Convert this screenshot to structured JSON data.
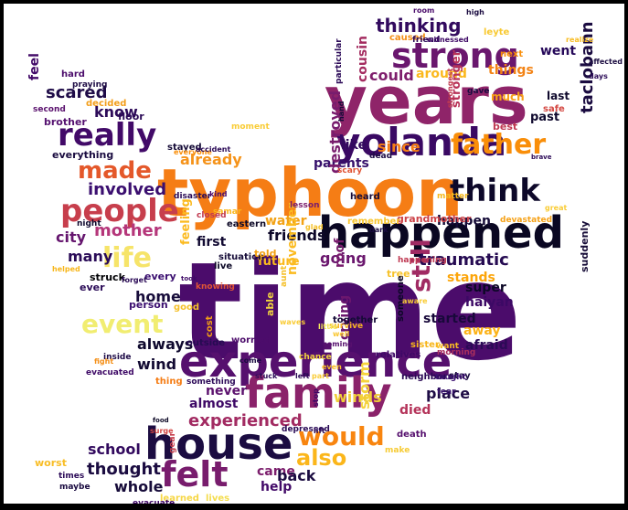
{
  "word_cloud": {
    "words": [
      {
        "text": "time",
        "color": "#4b0c6b"
      },
      {
        "text": "typhoon",
        "color": "#f57d15"
      },
      {
        "text": "years",
        "color": "#8f2469"
      },
      {
        "text": "happened",
        "color": "#0a0722"
      },
      {
        "text": "experience",
        "color": "#56106e"
      },
      {
        "text": "family",
        "color": "#8a226a"
      },
      {
        "text": "house",
        "color": "#1b0c41"
      },
      {
        "text": "yolanda",
        "color": "#3a0963"
      },
      {
        "text": "strong",
        "color": "#6a176e"
      },
      {
        "text": "people",
        "color": "#c73e4c"
      },
      {
        "text": "really",
        "color": "#420a68"
      },
      {
        "text": "think",
        "color": "#0d0829"
      },
      {
        "text": "father",
        "color": "#f98e09"
      },
      {
        "text": "felt",
        "color": "#781c6d"
      },
      {
        "text": "would",
        "color": "#f8850f"
      },
      {
        "text": "also",
        "color": "#fbb61a"
      },
      {
        "text": "event",
        "color": "#f1ed71"
      },
      {
        "text": "life",
        "color": "#f6e469"
      },
      {
        "text": "made",
        "color": "#e4582a"
      },
      {
        "text": "thinking",
        "color": "#320a5e"
      },
      {
        "text": "still",
        "color": "#a02a63"
      },
      {
        "text": "scared",
        "color": "#1f0c48"
      },
      {
        "text": "know",
        "color": "#2d0b59"
      },
      {
        "text": "mother",
        "color": "#b5367a"
      },
      {
        "text": "involved",
        "color": "#3b0f70"
      },
      {
        "text": "city",
        "color": "#65156e"
      },
      {
        "text": "many",
        "color": "#2a0b57"
      },
      {
        "text": "home",
        "color": "#170c3a"
      },
      {
        "text": "always",
        "color": "#0f092e"
      },
      {
        "text": "wind",
        "color": "#120a32"
      },
      {
        "text": "never",
        "color": "#5c126e"
      },
      {
        "text": "almost",
        "color": "#3e0966"
      },
      {
        "text": "experienced",
        "color": "#a22b62"
      },
      {
        "text": "thought",
        "color": "#1b0c41"
      },
      {
        "text": "school",
        "color": "#320a5e"
      },
      {
        "text": "whole",
        "color": "#160b39"
      },
      {
        "text": "worst",
        "color": "#f8bd25"
      },
      {
        "text": "came",
        "color": "#7b1d6c"
      },
      {
        "text": "help",
        "color": "#420a68"
      },
      {
        "text": "back",
        "color": "#1b0c41"
      },
      {
        "text": "learned",
        "color": "#f6d746"
      },
      {
        "text": "lives",
        "color": "#f4dd4f"
      },
      {
        "text": "already",
        "color": "#f5931a"
      },
      {
        "text": "first",
        "color": "#120a32"
      },
      {
        "text": "friends",
        "color": "#0d0829"
      },
      {
        "text": "water",
        "color": "#f2a215"
      },
      {
        "text": "future",
        "color": "#fbba1f"
      },
      {
        "text": "november",
        "color": "#fbbb20"
      },
      {
        "text": "going",
        "color": "#6b176e"
      },
      {
        "text": "traumatic",
        "color": "#260b52"
      },
      {
        "text": "stands",
        "color": "#fca50a"
      },
      {
        "text": "super",
        "color": "#0c0826"
      },
      {
        "text": "haiyan",
        "color": "#3c0965"
      },
      {
        "text": "started",
        "color": "#18093a"
      },
      {
        "text": "away",
        "color": "#fcb217"
      },
      {
        "text": "afraid",
        "color": "#2b0a56"
      },
      {
        "text": "storm",
        "color": "#f5d33c"
      },
      {
        "text": "crying",
        "color": "#6c176e"
      },
      {
        "text": "place",
        "color": "#1e0c45"
      },
      {
        "text": "died",
        "color": "#b43359"
      },
      {
        "text": "winds",
        "color": "#f0cd39"
      },
      {
        "text": "happen",
        "color": "#150b37"
      },
      {
        "text": "grandmother",
        "color": "#cc4248"
      },
      {
        "text": "parents",
        "color": "#36106b"
      },
      {
        "text": "since",
        "color": "#f57d15"
      },
      {
        "text": "like",
        "color": "#320a5e"
      },
      {
        "text": "destroyed",
        "color": "#781c6d"
      },
      {
        "text": "cousin",
        "color": "#a42c60"
      },
      {
        "text": "could",
        "color": "#7e1e6c"
      },
      {
        "text": "around",
        "color": "#fbb81d"
      },
      {
        "text": "things",
        "color": "#f38315"
      },
      {
        "text": "went",
        "color": "#26095a"
      },
      {
        "text": "last",
        "color": "#0f092c"
      },
      {
        "text": "taclobann",
        "color": "#1b0c41"
      },
      {
        "text": "past",
        "color": "#0f092e"
      },
      {
        "text": "feel",
        "color": "#420a68"
      },
      {
        "text": "hard",
        "color": "#4b0c6b"
      },
      {
        "text": "praying",
        "color": "#1e0c45"
      },
      {
        "text": "decided",
        "color": "#f29e1b"
      },
      {
        "text": "second",
        "color": "#5a116e"
      },
      {
        "text": "brother",
        "color": "#551170"
      },
      {
        "text": "everything",
        "color": "#1a0c40"
      },
      {
        "text": "floor",
        "color": "#2b0b57"
      },
      {
        "text": "stayed",
        "color": "#150b37"
      },
      {
        "text": "caused",
        "color": "#f48f17"
      },
      {
        "text": "friend",
        "color": "#2c0b58"
      },
      {
        "text": "leyte",
        "color": "#f8c931"
      },
      {
        "text": "room",
        "color": "#4a0c6b"
      },
      {
        "text": "ever",
        "color": "#2a0b57"
      },
      {
        "text": "struck",
        "color": "#000004"
      },
      {
        "text": "every",
        "color": "#3b0f70"
      },
      {
        "text": "person",
        "color": "#3b0f70"
      },
      {
        "text": "good",
        "color": "#f5c02a"
      },
      {
        "text": "live",
        "color": "#0c0826"
      },
      {
        "text": "outside",
        "color": "#260b52"
      },
      {
        "text": "worried",
        "color": "#4c0c6b"
      },
      {
        "text": "inside",
        "color": "#1f0c48"
      },
      {
        "text": "thing",
        "color": "#f57d15"
      },
      {
        "text": "something",
        "color": "#2d0b59"
      },
      {
        "text": "evacuated",
        "color": "#3e0966"
      },
      {
        "text": "feeling",
        "color": "#fbba1f"
      },
      {
        "text": "situation",
        "color": "#150b37"
      },
      {
        "text": "told",
        "color": "#f3a214"
      },
      {
        "text": "able",
        "color": "#f0d33f"
      },
      {
        "text": "stay",
        "color": "#1b0c41"
      },
      {
        "text": "fear",
        "color": "#36106b"
      },
      {
        "text": "morning",
        "color": "#a92e5e"
      },
      {
        "text": "sister",
        "color": "#f7b61b"
      },
      {
        "text": "relatives",
        "color": "#3e0966"
      },
      {
        "text": "death",
        "color": "#56106e"
      },
      {
        "text": "make",
        "color": "#f6cb35"
      },
      {
        "text": "suddenly",
        "color": "#150b37"
      },
      {
        "text": "devastated",
        "color": "#f6a219"
      },
      {
        "text": "remember",
        "color": "#f9c62f"
      },
      {
        "text": "roof",
        "color": "#781c6d"
      },
      {
        "text": "tree",
        "color": "#f6c22c"
      },
      {
        "text": "stronger",
        "color": "#b83258"
      },
      {
        "text": "much",
        "color": "#f8a016"
      },
      {
        "text": "best",
        "color": "#bf3952"
      },
      {
        "text": "safe",
        "color": "#d44842"
      },
      {
        "text": "moment",
        "color": "#f9cc36"
      },
      {
        "text": "gave",
        "color": "#1b0c41"
      },
      {
        "text": "next",
        "color": "#f98e09"
      },
      {
        "text": "witnessed",
        "color": "#3e0966"
      },
      {
        "text": "high",
        "color": "#1b0c41"
      },
      {
        "text": "realize",
        "color": "#f8bd25"
      },
      {
        "text": "survive",
        "color": "#f5b425"
      },
      {
        "text": "want",
        "color": "#f9bd23"
      },
      {
        "text": "neighbors",
        "color": "#2b0a56"
      },
      {
        "text": "taught",
        "color": "#3b0f70"
      },
      {
        "text": "aunt",
        "color": "#f5c02a"
      },
      {
        "text": "eastern",
        "color": "#0c0826"
      },
      {
        "text": "night",
        "color": "#0f092e"
      },
      {
        "text": "disaster",
        "color": "#2b0b57"
      },
      {
        "text": "samar",
        "color": "#fbb61a"
      },
      {
        "text": "together",
        "color": "#150b37"
      },
      {
        "text": "someone",
        "color": "#0c0826"
      },
      {
        "text": "happening",
        "color": "#bf3952"
      },
      {
        "text": "cost",
        "color": "#f4a014"
      },
      {
        "text": "kind",
        "color": "#4a0c6b"
      },
      {
        "text": "heard",
        "color": "#170c3a"
      },
      {
        "text": "lesson",
        "color": "#7b1d6c"
      },
      {
        "text": "scary",
        "color": "#e05536"
      },
      {
        "text": "dead",
        "color": "#1e0c45"
      },
      {
        "text": "strongest",
        "color": "#c0394f"
      },
      {
        "text": "particular",
        "color": "#2c0b58"
      },
      {
        "text": "hand",
        "color": "#150b37"
      },
      {
        "text": "matter",
        "color": "#f6b91f"
      },
      {
        "text": "lift",
        "color": "#2c0b58"
      },
      {
        "text": "depressed",
        "color": "#2a0b57"
      },
      {
        "text": "surge",
        "color": "#d24644"
      },
      {
        "text": "food",
        "color": "#0c0826"
      },
      {
        "text": "times",
        "color": "#2c0b58"
      },
      {
        "text": "maybe",
        "color": "#1b0c41"
      },
      {
        "text": "evacuate",
        "color": "#3e0966"
      },
      {
        "text": "fight",
        "color": "#f48f17"
      },
      {
        "text": "closed",
        "color": "#c13a50"
      },
      {
        "text": "stop",
        "color": "#3e0966"
      },
      {
        "text": "forget",
        "color": "#2b0b57"
      },
      {
        "text": "took",
        "color": "#3e0966"
      },
      {
        "text": "helped",
        "color": "#f7b61b"
      },
      {
        "text": "everyone",
        "color": "#f98e09"
      },
      {
        "text": "accident",
        "color": "#2b0b57"
      },
      {
        "text": "knowing",
        "color": "#e05536"
      },
      {
        "text": "brave",
        "color": "#2c0b58"
      },
      {
        "text": "gear",
        "color": "#c73e4c"
      },
      {
        "text": "coming",
        "color": "#56106e"
      },
      {
        "text": "aware",
        "color": "#f9cc36"
      },
      {
        "text": "well",
        "color": "#f9c62f"
      },
      {
        "text": "days",
        "color": "#2b0b57"
      },
      {
        "text": "great",
        "color": "#f9cc36"
      },
      {
        "text": "affected",
        "color": "#1b0c41"
      },
      {
        "text": "left",
        "color": "#2c0b58"
      },
      {
        "text": "even",
        "color": "#f8bd25"
      },
      {
        "text": "part",
        "color": "#f9cc36"
      },
      {
        "text": "little",
        "color": "#f5e85b"
      },
      {
        "text": "chance",
        "color": "#f0d33f"
      },
      {
        "text": "dark",
        "color": "#1b0c41"
      },
      {
        "text": "stuck",
        "color": "#2c0b58"
      },
      {
        "text": "glad",
        "color": "#f5c02a"
      },
      {
        "text": "waves",
        "color": "#f9cc36"
      },
      {
        "text": "come",
        "color": "#1b0c41"
      }
    ]
  }
}
